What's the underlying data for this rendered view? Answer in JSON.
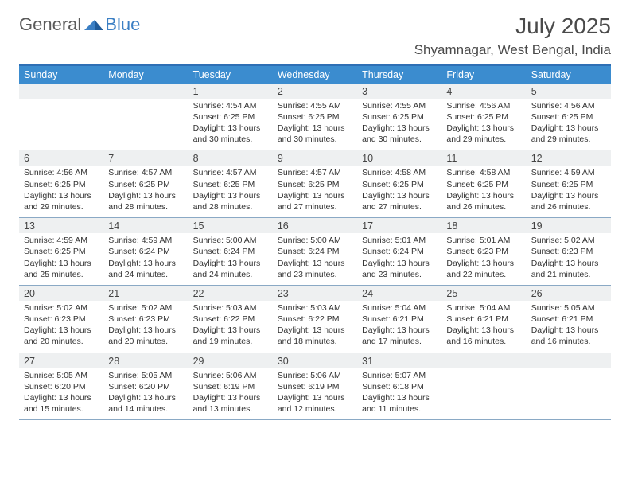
{
  "brand": {
    "part1": "General",
    "part2": "Blue"
  },
  "title": "July 2025",
  "location": "Shyamnagar, West Bengal, India",
  "colors": {
    "header_bar": "#3b8ccf",
    "header_border": "#2e6fb5",
    "daynum_bg": "#eef0f1",
    "week_border": "#8aa9c5",
    "text": "#333333",
    "brand_gray": "#5a5a5a",
    "brand_blue": "#3b7fc4"
  },
  "dow": [
    "Sunday",
    "Monday",
    "Tuesday",
    "Wednesday",
    "Thursday",
    "Friday",
    "Saturday"
  ],
  "weeks": [
    {
      "nums": [
        "",
        "",
        "1",
        "2",
        "3",
        "4",
        "5"
      ],
      "cells": [
        null,
        null,
        {
          "sr": "4:54 AM",
          "ss": "6:25 PM",
          "dl": "13 hours and 30 minutes."
        },
        {
          "sr": "4:55 AM",
          "ss": "6:25 PM",
          "dl": "13 hours and 30 minutes."
        },
        {
          "sr": "4:55 AM",
          "ss": "6:25 PM",
          "dl": "13 hours and 30 minutes."
        },
        {
          "sr": "4:56 AM",
          "ss": "6:25 PM",
          "dl": "13 hours and 29 minutes."
        },
        {
          "sr": "4:56 AM",
          "ss": "6:25 PM",
          "dl": "13 hours and 29 minutes."
        }
      ]
    },
    {
      "nums": [
        "6",
        "7",
        "8",
        "9",
        "10",
        "11",
        "12"
      ],
      "cells": [
        {
          "sr": "4:56 AM",
          "ss": "6:25 PM",
          "dl": "13 hours and 29 minutes."
        },
        {
          "sr": "4:57 AM",
          "ss": "6:25 PM",
          "dl": "13 hours and 28 minutes."
        },
        {
          "sr": "4:57 AM",
          "ss": "6:25 PM",
          "dl": "13 hours and 28 minutes."
        },
        {
          "sr": "4:57 AM",
          "ss": "6:25 PM",
          "dl": "13 hours and 27 minutes."
        },
        {
          "sr": "4:58 AM",
          "ss": "6:25 PM",
          "dl": "13 hours and 27 minutes."
        },
        {
          "sr": "4:58 AM",
          "ss": "6:25 PM",
          "dl": "13 hours and 26 minutes."
        },
        {
          "sr": "4:59 AM",
          "ss": "6:25 PM",
          "dl": "13 hours and 26 minutes."
        }
      ]
    },
    {
      "nums": [
        "13",
        "14",
        "15",
        "16",
        "17",
        "18",
        "19"
      ],
      "cells": [
        {
          "sr": "4:59 AM",
          "ss": "6:25 PM",
          "dl": "13 hours and 25 minutes."
        },
        {
          "sr": "4:59 AM",
          "ss": "6:24 PM",
          "dl": "13 hours and 24 minutes."
        },
        {
          "sr": "5:00 AM",
          "ss": "6:24 PM",
          "dl": "13 hours and 24 minutes."
        },
        {
          "sr": "5:00 AM",
          "ss": "6:24 PM",
          "dl": "13 hours and 23 minutes."
        },
        {
          "sr": "5:01 AM",
          "ss": "6:24 PM",
          "dl": "13 hours and 23 minutes."
        },
        {
          "sr": "5:01 AM",
          "ss": "6:23 PM",
          "dl": "13 hours and 22 minutes."
        },
        {
          "sr": "5:02 AM",
          "ss": "6:23 PM",
          "dl": "13 hours and 21 minutes."
        }
      ]
    },
    {
      "nums": [
        "20",
        "21",
        "22",
        "23",
        "24",
        "25",
        "26"
      ],
      "cells": [
        {
          "sr": "5:02 AM",
          "ss": "6:23 PM",
          "dl": "13 hours and 20 minutes."
        },
        {
          "sr": "5:02 AM",
          "ss": "6:23 PM",
          "dl": "13 hours and 20 minutes."
        },
        {
          "sr": "5:03 AM",
          "ss": "6:22 PM",
          "dl": "13 hours and 19 minutes."
        },
        {
          "sr": "5:03 AM",
          "ss": "6:22 PM",
          "dl": "13 hours and 18 minutes."
        },
        {
          "sr": "5:04 AM",
          "ss": "6:21 PM",
          "dl": "13 hours and 17 minutes."
        },
        {
          "sr": "5:04 AM",
          "ss": "6:21 PM",
          "dl": "13 hours and 16 minutes."
        },
        {
          "sr": "5:05 AM",
          "ss": "6:21 PM",
          "dl": "13 hours and 16 minutes."
        }
      ]
    },
    {
      "nums": [
        "27",
        "28",
        "29",
        "30",
        "31",
        "",
        ""
      ],
      "cells": [
        {
          "sr": "5:05 AM",
          "ss": "6:20 PM",
          "dl": "13 hours and 15 minutes."
        },
        {
          "sr": "5:05 AM",
          "ss": "6:20 PM",
          "dl": "13 hours and 14 minutes."
        },
        {
          "sr": "5:06 AM",
          "ss": "6:19 PM",
          "dl": "13 hours and 13 minutes."
        },
        {
          "sr": "5:06 AM",
          "ss": "6:19 PM",
          "dl": "13 hours and 12 minutes."
        },
        {
          "sr": "5:07 AM",
          "ss": "6:18 PM",
          "dl": "13 hours and 11 minutes."
        },
        null,
        null
      ]
    }
  ],
  "labels": {
    "sunrise": "Sunrise: ",
    "sunset": "Sunset: ",
    "daylight": "Daylight: "
  }
}
